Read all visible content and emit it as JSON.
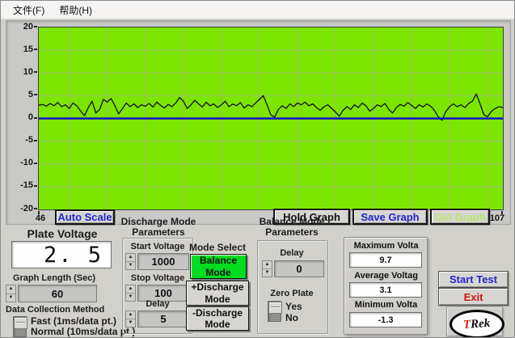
{
  "menu": {
    "items": [
      {
        "label": "文件(F)"
      },
      {
        "label": "帮助(H)"
      }
    ]
  },
  "chart": {
    "y_ticks": [
      "20",
      "15",
      "10",
      "5",
      "0",
      "-5",
      "-10",
      "-15",
      "-20"
    ],
    "x_start_label": "46",
    "x_end_label": "107",
    "auto_scale_label": "Auto Scale",
    "hold_graph_label": "Hold Graph",
    "save_graph_label": "Save Graph",
    "get_graph_label": "Get Graph",
    "colors": {
      "plot_bg": "#7de600",
      "grid": "#9db877",
      "zero_line": "#1213c4",
      "trace": "#101010"
    }
  },
  "chart_data": {
    "type": "line",
    "title": "",
    "xlabel": "",
    "ylabel": "",
    "x_range": [
      46,
      107
    ],
    "y_range": [
      -20,
      20
    ],
    "grid": {
      "x_step": 5,
      "y_step": 5
    },
    "series": [
      {
        "name": "Plate Voltage trace",
        "x0": 46,
        "dx": 0.5,
        "y": [
          2.9,
          3.1,
          2.7,
          3.3,
          2.8,
          3.5,
          2.6,
          3.0,
          2.2,
          3.4,
          2.8,
          1.6,
          0.6,
          2.4,
          3.8,
          1.2,
          2.0,
          4.2,
          3.6,
          4.4,
          2.8,
          1.0,
          2.2,
          3.4,
          2.6,
          3.2,
          2.4,
          3.0,
          2.7,
          3.3,
          2.5,
          3.6,
          2.9,
          2.3,
          3.1,
          2.6,
          3.4,
          4.6,
          3.8,
          2.2,
          3.0,
          4.0,
          3.2,
          2.5,
          3.6,
          2.8,
          3.2,
          2.4,
          3.0,
          3.8,
          2.6,
          3.2,
          2.8,
          3.5,
          2.3,
          3.0,
          2.6,
          3.4,
          4.2,
          5.0,
          3.0,
          0.8,
          0.3,
          2.0,
          2.8,
          2.2,
          3.2,
          2.6,
          3.4,
          3.0,
          3.6,
          2.8,
          3.2,
          2.4,
          1.8,
          2.6,
          3.0,
          2.2,
          1.4,
          0.5,
          1.8,
          2.6,
          2.0,
          3.0,
          2.4,
          3.4,
          2.8,
          1.6,
          2.2,
          3.0,
          2.6,
          3.3,
          2.0,
          1.2,
          2.4,
          3.1,
          2.7,
          3.5,
          2.9,
          2.2,
          3.0,
          2.5,
          3.2,
          2.7,
          1.8,
          0.4,
          -0.4,
          1.5,
          2.6,
          3.2,
          2.6,
          3.0,
          2.4,
          3.3,
          3.8,
          5.4,
          3.2,
          0.8,
          0.4,
          1.6,
          2.2,
          2.6,
          2.4
        ]
      }
    ],
    "zero_line_y": 0
  },
  "plate_voltage": {
    "label": "Plate Voltage",
    "value": "2. 5"
  },
  "graph_length": {
    "label": "Graph Length (Sec)",
    "value": "60"
  },
  "data_collection": {
    "label": "Data Collection Method",
    "options": [
      "Fast (1ms/data pt.)",
      "Normal (10ms/data pt.)"
    ],
    "selected": "Fast (1ms/data pt.)"
  },
  "discharge": {
    "title_line1": "Discharge Mode",
    "title_line2": "Parameters",
    "fields": [
      {
        "label": "Start Voltage",
        "value": "1000"
      },
      {
        "label": "Stop Voltage",
        "value": "100"
      },
      {
        "label": "Delay",
        "value": "5"
      }
    ]
  },
  "mode_select": {
    "label": "Mode Select",
    "options": [
      {
        "label": "Balance Mode",
        "selected": true
      },
      {
        "label": "+Discharge Mode",
        "selected": false
      },
      {
        "label": "-Discharge Mode",
        "selected": false
      }
    ],
    "selected_color": "#00dc20"
  },
  "balance": {
    "title_line1": "Balance Mode",
    "title_line2": "Parameters",
    "delay_label": "Delay",
    "delay_value": "0",
    "zero_plate_label": "Zero Plate",
    "zero_plate_options": [
      "Yes",
      "No"
    ],
    "zero_plate_selected": "Yes"
  },
  "stats": {
    "items": [
      {
        "label": "Maximum Volta",
        "value": "9.7"
      },
      {
        "label": "Average Voltag",
        "value": "3.1"
      },
      {
        "label": "Minimum Volta",
        "value": "-1.3"
      }
    ]
  },
  "actions": {
    "start_label": "Start Test",
    "exit_label": "Exit"
  },
  "logo": {
    "text": "TRek"
  },
  "accent_colors": {
    "blue": "#2324cf",
    "red": "#d41414",
    "disabled_green": "#b9e46e"
  }
}
